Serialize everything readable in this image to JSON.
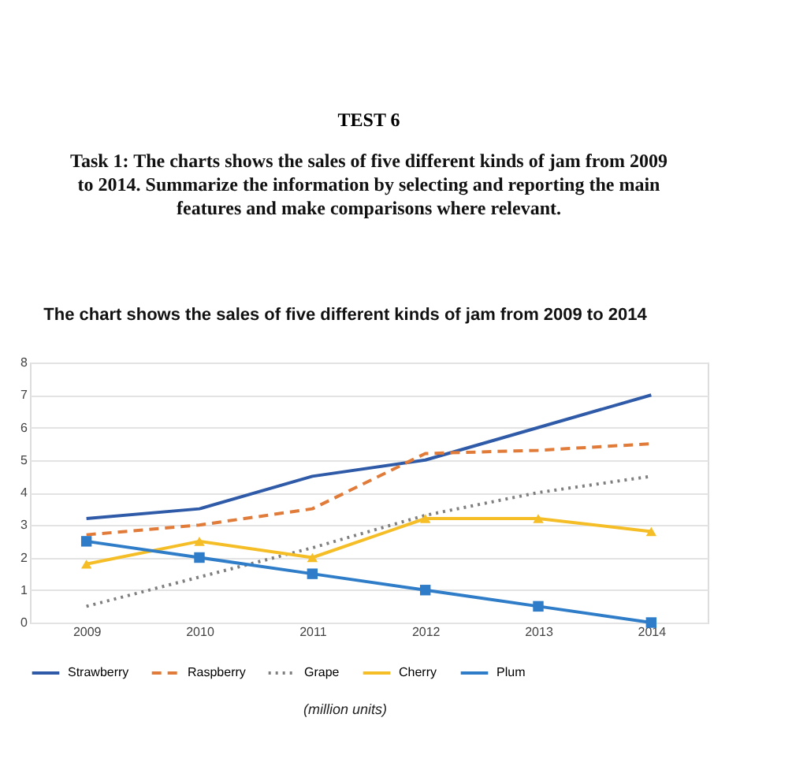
{
  "chart_data": {
    "type": "line",
    "title": "TEST 6",
    "subtitle": "Task 1: The charts shows the sales of five different kinds of jam from 2009 to 2014. Summarize the information by selecting and reporting the main features and make comparisons where relevant.",
    "annotations": [
      "The chart shows the sales of five different kinds of jam from 2009 to 2014",
      "(million units)"
    ],
    "categories": [
      "2009",
      "2010",
      "2011",
      "2012",
      "2013",
      "2014"
    ],
    "series": [
      {
        "name": "Strawberry",
        "color": "#2e5aa8",
        "line_style": "solid",
        "marker": "none",
        "values": [
          3.2,
          3.5,
          4.5,
          5,
          6,
          7
        ]
      },
      {
        "name": "Raspberry",
        "color": "#e07b39",
        "line_style": "dashed",
        "marker": "none",
        "values": [
          2.7,
          3,
          3.5,
          5.2,
          5.3,
          5.5
        ]
      },
      {
        "name": "Grape",
        "color": "#7f7f7f",
        "line_style": "dotted",
        "marker": "none",
        "values": [
          0.5,
          1.4,
          2.3,
          3.3,
          4,
          4.5
        ]
      },
      {
        "name": "Cherry",
        "color": "#f5be27",
        "line_style": "solid",
        "marker": "triangle",
        "values": [
          1.8,
          2.5,
          2,
          3.2,
          3.2,
          2.8
        ]
      },
      {
        "name": "Plum",
        "color": "#2f7dc8",
        "line_style": "solid",
        "marker": "square",
        "values": [
          2.5,
          2,
          1.5,
          1,
          0.5,
          0
        ]
      }
    ],
    "ylim": [
      0,
      8
    ],
    "yticks": [
      0,
      1,
      2,
      3,
      4,
      5,
      6,
      7,
      8
    ],
    "grid": "y",
    "legend": "bottom"
  }
}
